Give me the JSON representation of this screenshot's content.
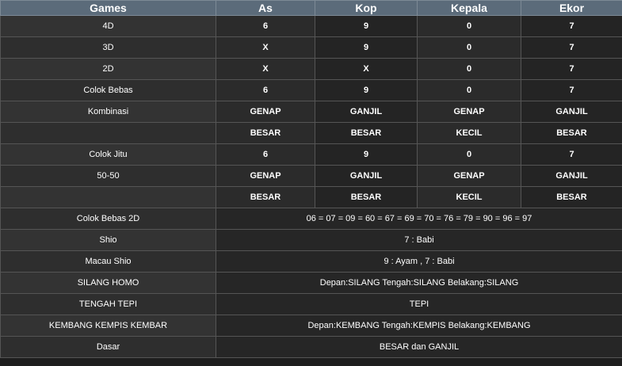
{
  "headers": [
    "Games",
    "As",
    "Kop",
    "Kepala",
    "Ekor"
  ],
  "rows": [
    {
      "label": "4D",
      "values": [
        "6",
        "9",
        "0",
        "7"
      ]
    },
    {
      "label": "3D",
      "values": [
        "X",
        "9",
        "0",
        "7"
      ]
    },
    {
      "label": "2D",
      "values": [
        "X",
        "X",
        "0",
        "7"
      ]
    },
    {
      "label": "Colok Bebas",
      "values": [
        "6",
        "9",
        "0",
        "7"
      ]
    },
    {
      "label": "Kombinasi",
      "values": [
        "GENAP",
        "GANJIL",
        "GENAP",
        "GANJIL"
      ]
    },
    {
      "label": "",
      "values": [
        "BESAR",
        "BESAR",
        "KECIL",
        "BESAR"
      ]
    },
    {
      "label": "Colok Jitu",
      "values": [
        "6",
        "9",
        "0",
        "7"
      ]
    },
    {
      "label": "50-50",
      "values": [
        "GENAP",
        "GANJIL",
        "GENAP",
        "GANJIL"
      ]
    },
    {
      "label": "",
      "values": [
        "BESAR",
        "BESAR",
        "KECIL",
        "BESAR"
      ]
    }
  ],
  "spans": [
    {
      "label": "Colok Bebas 2D",
      "value": "06 = 07 = 09 = 60 = 67 = 69 = 70 = 76 = 79 = 90 = 96 = 97"
    },
    {
      "label": "Shio",
      "value": "7 : Babi"
    },
    {
      "label": "Macau Shio",
      "value": "9 : Ayam , 7 : Babi"
    },
    {
      "label": "SILANG HOMO",
      "value": "Depan:SILANG Tengah:SILANG Belakang:SILANG"
    },
    {
      "label": "TENGAH TEPI",
      "value": "TEPI"
    },
    {
      "label": "KEMBANG KEMPIS KEMBAR",
      "value": "Depan:KEMBANG Tengah:KEMPIS Belakang:KEMBANG"
    },
    {
      "label": "Dasar",
      "value": "BESAR dan GANJIL"
    }
  ]
}
